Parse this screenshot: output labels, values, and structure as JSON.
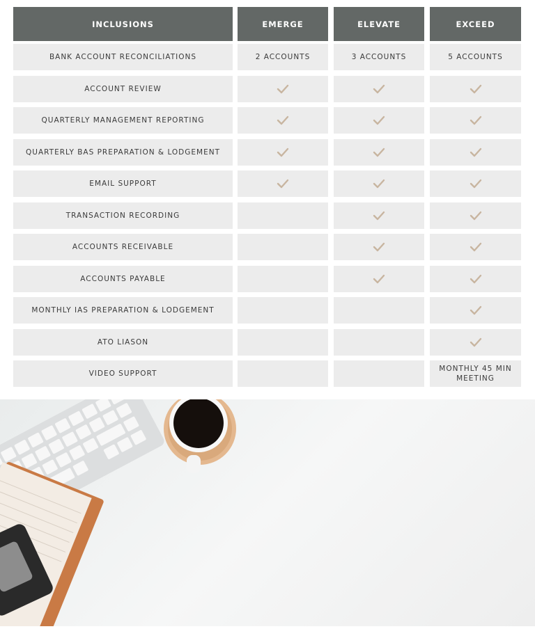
{
  "table": {
    "headers": [
      "INCLUSIONS",
      "EMERGE",
      "ELEVATE",
      "EXCEED"
    ],
    "check_color": "#c8b5a0",
    "header_color": "#636866",
    "rows": [
      {
        "label": "BANK ACCOUNT RECONCILIATIONS",
        "values": [
          "2 ACCOUNTS",
          "3 ACCOUNTS",
          "5 ACCOUNTS"
        ]
      },
      {
        "label": "ACCOUNT REVIEW",
        "values": [
          true,
          true,
          true
        ]
      },
      {
        "label": "QUARTERLY MANAGEMENT REPORTING",
        "values": [
          true,
          true,
          true
        ]
      },
      {
        "label": "QUARTERLY BAS PREPARATION & LODGEMENT",
        "values": [
          true,
          true,
          true
        ]
      },
      {
        "label": "EMAIL SUPPORT",
        "values": [
          true,
          true,
          true
        ]
      },
      {
        "label": "TRANSACTION RECORDING",
        "values": [
          false,
          true,
          true
        ]
      },
      {
        "label": "ACCOUNTS RECEIVABLE",
        "values": [
          false,
          true,
          true
        ]
      },
      {
        "label": "ACCOUNTS PAYABLE",
        "values": [
          false,
          true,
          true
        ]
      },
      {
        "label": "MONTHLY IAS PREPARATION & LODGEMENT",
        "values": [
          false,
          false,
          true
        ]
      },
      {
        "label": "ATO LIASON",
        "values": [
          false,
          false,
          true
        ]
      },
      {
        "label": "VIDEO SUPPORT",
        "values": [
          false,
          false,
          "MONTHLY 45 MIN MEETING"
        ]
      }
    ]
  }
}
